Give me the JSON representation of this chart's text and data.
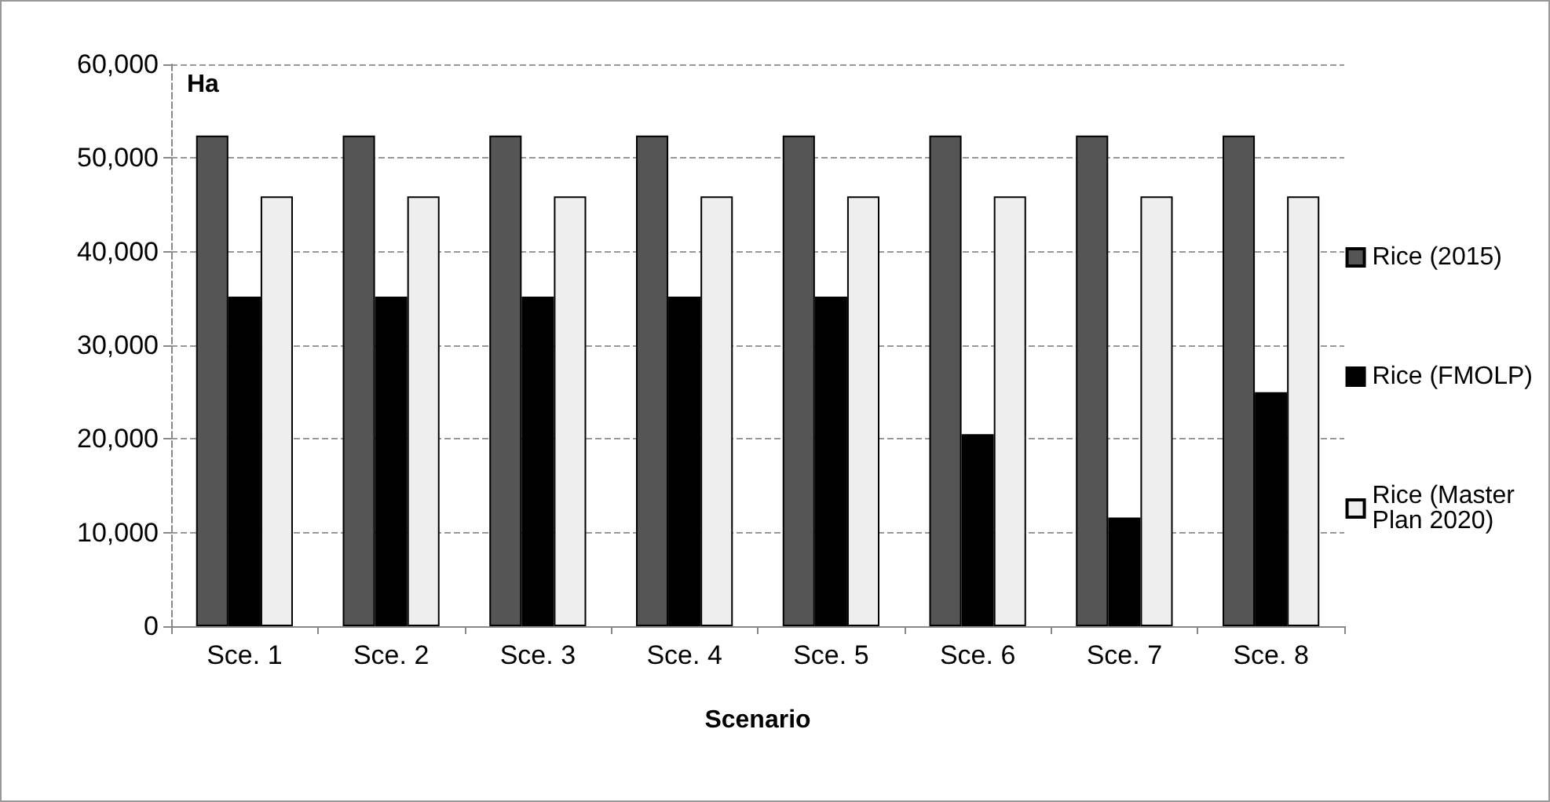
{
  "chart_data": {
    "type": "bar",
    "xlabel": "Scenario",
    "annotations": [
      "Ha"
    ],
    "categories": [
      "Sce. 1",
      "Sce. 2",
      "Sce. 3",
      "Sce. 4",
      "Sce. 5",
      "Sce. 6",
      "Sce. 7",
      "Sce. 8"
    ],
    "series": [
      {
        "name": "Rice (2015)",
        "color": "#555555",
        "values": [
          52400,
          52400,
          52400,
          52400,
          52400,
          52400,
          52400,
          52400
        ]
      },
      {
        "name": "Rice (FMOLP)",
        "color": "#000000",
        "values": [
          35200,
          35200,
          35200,
          35200,
          35200,
          20500,
          11600,
          25000
        ]
      },
      {
        "name": "Rice (Master Plan 2020)",
        "color": "#eeeeee",
        "values": [
          45900,
          45900,
          45900,
          45900,
          45900,
          45900,
          45900,
          45900
        ]
      }
    ],
    "ylim": [
      0,
      60000
    ],
    "yticks": [
      0,
      {
        "value": 10000,
        "label": "10,000"
      },
      {
        "value": 20000,
        "label": "20,000"
      },
      {
        "value": 30000,
        "label": "30,000"
      },
      {
        "value": 40000,
        "label": "40,000"
      },
      {
        "value": 50000,
        "label": "50,000"
      },
      {
        "value": 60000,
        "label": "60,000"
      }
    ],
    "grid": "y",
    "legend": "right"
  }
}
